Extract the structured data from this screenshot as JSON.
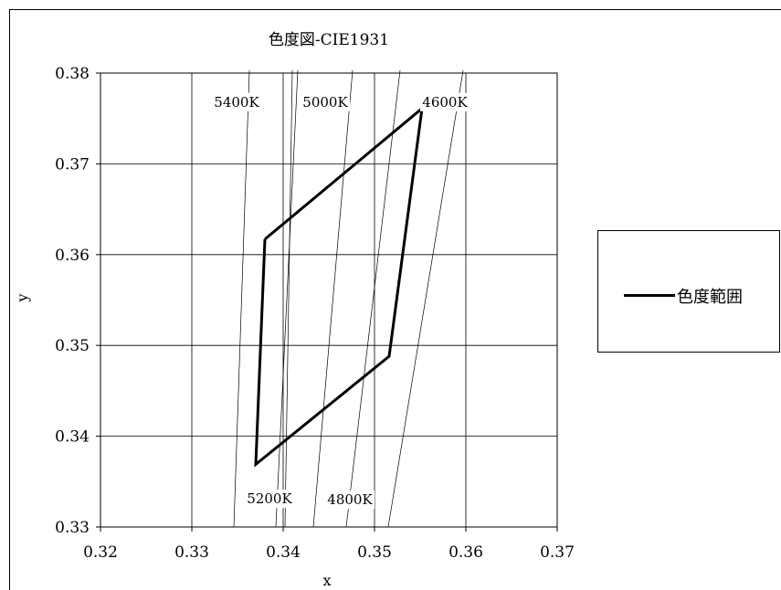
{
  "chart_data": {
    "type": "line",
    "title": "色度図-CIE1931",
    "xlabel": "x",
    "ylabel": "y",
    "xlim": [
      0.32,
      0.37
    ],
    "ylim": [
      0.33,
      0.38
    ],
    "xticks": [
      "0.32",
      "0.33",
      "0.34",
      "0.35",
      "0.36",
      "0.37"
    ],
    "yticks": [
      "0.33",
      "0.34",
      "0.35",
      "0.36",
      "0.37",
      "0.38"
    ],
    "grid": true,
    "legend_position": "right",
    "series": [
      {
        "name": "色度範囲",
        "color": "#000000",
        "x": [
          0.338,
          0.3552,
          0.3516,
          0.337,
          0.338
        ],
        "y": [
          0.3617,
          0.3761,
          0.3488,
          0.3369,
          0.3617
        ]
      }
    ],
    "isotherms": [
      {
        "label": "5400K",
        "x": [
          0.3346,
          0.3363
        ],
        "y": [
          0.33,
          0.3803
        ]
      },
      {
        "label": "5200K",
        "x": [
          0.3392,
          0.3416
        ],
        "y": [
          0.33,
          0.3803
        ]
      },
      {
        "label": "5000K",
        "x": [
          0.3433,
          0.3476
        ],
        "y": [
          0.33,
          0.3803
        ]
      },
      {
        "label": "4800K",
        "x": [
          0.3469,
          0.3528
        ],
        "y": [
          0.33,
          0.3803
        ]
      },
      {
        "label": "4600K",
        "x": [
          0.3515,
          0.3597
        ],
        "y": [
          0.33,
          0.3803
        ]
      },
      {
        "label": "",
        "x": [
          0.3402,
          0.341
        ],
        "y": [
          0.33,
          0.3803
        ]
      }
    ],
    "annotations": [
      "5400K",
      "5000K",
      "4600K",
      "5200K",
      "4800K"
    ]
  },
  "legend": {
    "label": "色度範囲"
  }
}
